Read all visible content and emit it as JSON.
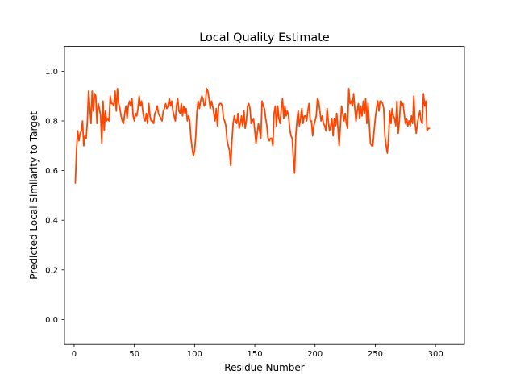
{
  "chart_data": {
    "type": "line",
    "title": "Local Quality Estimate",
    "xlabel": "Residue Number",
    "ylabel": "Predicted Local Similarity to Target",
    "xlim": [
      -8,
      324
    ],
    "ylim": [
      -0.1,
      1.1
    ],
    "x_ticks": [
      0,
      50,
      100,
      150,
      200,
      250,
      300
    ],
    "y_ticks": [
      0.0,
      0.2,
      0.4,
      0.6,
      0.8,
      1.0
    ],
    "x_tick_labels": [
      "0",
      "50",
      "100",
      "150",
      "200",
      "250",
      "300"
    ],
    "y_tick_labels": [
      "0.0",
      "0.2",
      "0.4",
      "0.6",
      "0.8",
      "1.0"
    ],
    "grid": false,
    "line_color": "#ff4500",
    "series": [
      {
        "x_start": 1,
        "x_step": 1,
        "values": [
          0.55,
          0.68,
          0.76,
          0.72,
          0.75,
          0.76,
          0.8,
          0.7,
          0.74,
          0.73,
          0.8,
          0.92,
          0.86,
          0.79,
          0.92,
          0.84,
          0.91,
          0.9,
          0.79,
          0.87,
          0.85,
          0.82,
          0.71,
          0.88,
          0.76,
          0.84,
          0.8,
          0.81,
          0.8,
          0.9,
          0.87,
          0.87,
          0.86,
          0.92,
          0.84,
          0.93,
          0.87,
          0.85,
          0.82,
          0.8,
          0.79,
          0.83,
          0.86,
          0.81,
          0.86,
          0.88,
          0.86,
          0.89,
          0.82,
          0.8,
          0.83,
          0.82,
          0.85,
          0.9,
          0.86,
          0.88,
          0.84,
          0.81,
          0.8,
          0.83,
          0.79,
          0.87,
          0.82,
          0.8,
          0.8,
          0.79,
          0.83,
          0.84,
          0.86,
          0.83,
          0.82,
          0.81,
          0.8,
          0.84,
          0.85,
          0.87,
          0.85,
          0.86,
          0.89,
          0.86,
          0.88,
          0.84,
          0.82,
          0.8,
          0.86,
          0.89,
          0.84,
          0.83,
          0.87,
          0.82,
          0.86,
          0.83,
          0.85,
          0.8,
          0.82,
          0.8,
          0.73,
          0.69,
          0.66,
          0.68,
          0.74,
          0.84,
          0.88,
          0.85,
          0.88,
          0.9,
          0.89,
          0.86,
          0.87,
          0.93,
          0.92,
          0.89,
          0.85,
          0.88,
          0.86,
          0.83,
          0.8,
          0.85,
          0.78,
          0.86,
          0.87,
          0.87,
          0.86,
          0.81,
          0.8,
          0.78,
          0.72,
          0.7,
          0.68,
          0.62,
          0.72,
          0.79,
          0.82,
          0.8,
          0.79,
          0.83,
          0.77,
          0.79,
          0.82,
          0.78,
          0.84,
          0.77,
          0.8,
          0.86,
          0.87,
          0.85,
          0.79,
          0.8,
          0.81,
          0.76,
          0.71,
          0.75,
          0.79,
          0.76,
          0.73,
          0.88,
          0.86,
          0.85,
          0.81,
          0.78,
          0.73,
          0.72,
          0.73,
          0.73,
          0.7,
          0.83,
          0.86,
          0.78,
          0.86,
          0.81,
          0.79,
          0.85,
          0.89,
          0.81,
          0.86,
          0.82,
          0.84,
          0.82,
          0.77,
          0.74,
          0.73,
          0.65,
          0.59,
          0.74,
          0.8,
          0.84,
          0.78,
          0.81,
          0.85,
          0.79,
          0.82,
          0.82,
          0.8,
          0.84,
          0.87,
          0.8,
          0.8,
          0.74,
          0.78,
          0.8,
          0.82,
          0.89,
          0.88,
          0.84,
          0.8,
          0.82,
          0.79,
          0.78,
          0.76,
          0.85,
          0.8,
          0.76,
          0.78,
          0.81,
          0.74,
          0.81,
          0.78,
          0.83,
          0.77,
          0.7,
          0.78,
          0.86,
          0.83,
          0.8,
          0.83,
          0.79,
          0.77,
          0.93,
          0.87,
          0.88,
          0.86,
          0.91,
          0.85,
          0.8,
          0.84,
          0.87,
          0.81,
          0.86,
          0.82,
          0.88,
          0.83,
          0.89,
          0.79,
          0.87,
          0.79,
          0.71,
          0.7,
          0.7,
          0.76,
          0.81,
          0.85,
          0.88,
          0.84,
          0.88,
          0.88,
          0.87,
          0.85,
          0.74,
          0.7,
          0.67,
          0.73,
          0.84,
          0.79,
          0.85,
          0.82,
          0.81,
          0.78,
          0.88,
          0.75,
          0.8,
          0.88,
          0.86,
          0.87,
          0.83,
          0.79,
          0.81,
          0.78,
          0.8,
          0.78,
          0.82,
          0.79,
          0.9,
          0.79,
          0.75,
          0.79,
          0.82,
          0.84,
          0.8,
          0.79,
          0.91,
          0.86,
          0.88,
          0.76,
          0.77,
          0.77
        ]
      }
    ]
  }
}
